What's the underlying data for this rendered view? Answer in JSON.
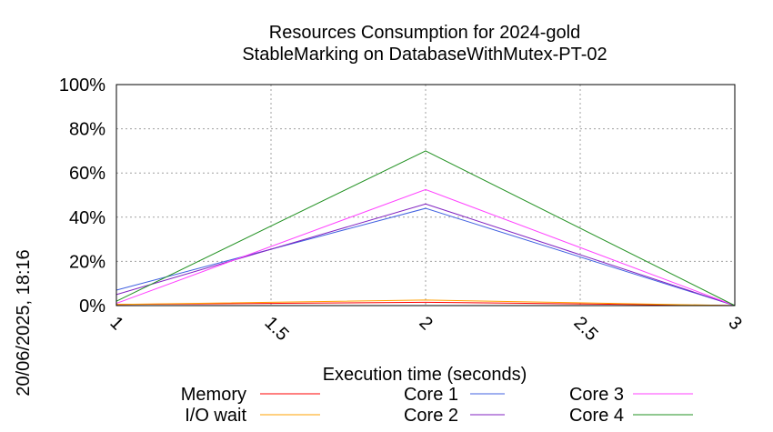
{
  "chart_data": {
    "type": "line",
    "title": "Resources Consumption for 2024-gold",
    "subtitle": "StableMarking on DatabaseWithMutex-PT-02",
    "xlabel": "Execution time (seconds)",
    "ylabel": "",
    "side_label": "20/06/2025, 18:16",
    "xlim": [
      1,
      3
    ],
    "ylim": [
      0,
      100
    ],
    "x_ticks": [
      "1",
      "1.5",
      "2",
      "2.5",
      "3"
    ],
    "y_ticks": [
      "0%",
      "20%",
      "40%",
      "60%",
      "80%",
      "100%"
    ],
    "grid": true,
    "legend_position": "bottom",
    "x": [
      1,
      2,
      3
    ],
    "series": [
      {
        "name": "Memory",
        "color": "#ff0000",
        "values": [
          0.5,
          1.5,
          0
        ]
      },
      {
        "name": "I/O wait",
        "color": "#ffa000",
        "values": [
          0.5,
          2.5,
          0
        ]
      },
      {
        "name": "Core 1",
        "color": "#4060e0",
        "values": [
          7,
          44,
          0
        ]
      },
      {
        "name": "Core 2",
        "color": "#8020c0",
        "values": [
          5,
          46,
          0
        ]
      },
      {
        "name": "Core 3",
        "color": "#ff40ff",
        "values": [
          1,
          52.5,
          0
        ]
      },
      {
        "name": "Core 4",
        "color": "#209020",
        "values": [
          2,
          70,
          0
        ]
      }
    ]
  }
}
